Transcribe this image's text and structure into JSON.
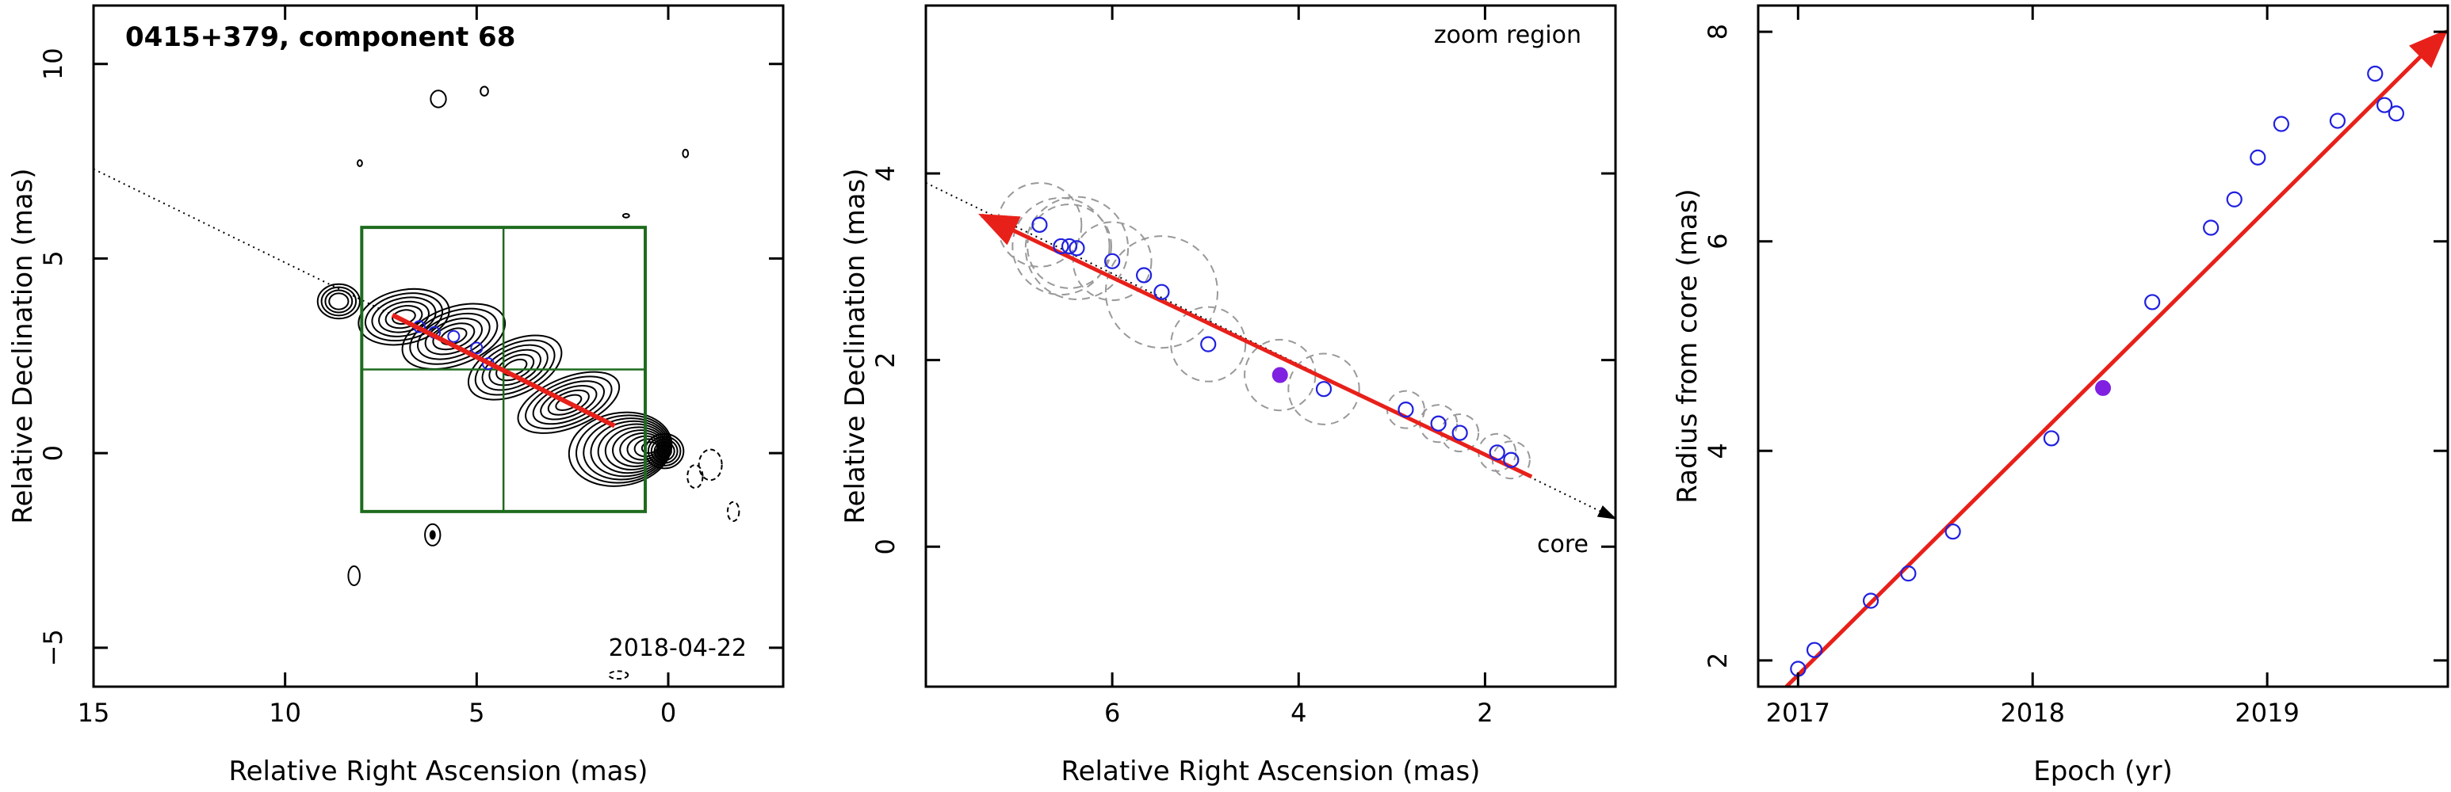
{
  "chart_data": [
    {
      "type": "contour-map",
      "title": "0415+379, component 68",
      "date_label": "2018-04-22",
      "xlabel": "Relative Right Ascension (mas)",
      "ylabel": "Relative Declination (mas)",
      "xlim": [
        15,
        -3
      ],
      "ylim": [
        -6,
        11.5
      ],
      "xticks": [
        15,
        10,
        5,
        0
      ],
      "yticks": [
        -5,
        0,
        5,
        10
      ],
      "grid": false,
      "colors": {
        "contour": "#000000",
        "zoom_box": "#1e6b1e",
        "fit_arrow": "#e8201a",
        "points": "#2020e0"
      },
      "zoom_box": {
        "ra": [
          8,
          0.6
        ],
        "dec": [
          -1.5,
          5.8
        ]
      },
      "fit_line": {
        "start": [
          7.2,
          3.55
        ],
        "end": [
          1.4,
          0.7
        ]
      },
      "component_positions": [
        {
          "x": 6.5,
          "y": 3.25
        },
        {
          "x": 6.1,
          "y": 3.1
        },
        {
          "x": 5.6,
          "y": 3.0
        },
        {
          "x": 5.0,
          "y": 2.7
        },
        {
          "x": 4.7,
          "y": 2.3
        }
      ],
      "axis_line": {
        "from": [
          15,
          7.3
        ],
        "to": [
          7.2,
          3.55
        ]
      }
    },
    {
      "type": "scatter",
      "xlabel": "Relative Right Ascension (mas)",
      "ylabel": "Relative Declination (mas)",
      "annotation_top": "zoom region",
      "annotation_core": "core",
      "xlim": [
        8,
        0.6
      ],
      "ylim": [
        -1.5,
        5.8
      ],
      "xticks": [
        6,
        4,
        2
      ],
      "yticks": [
        0,
        2,
        4
      ],
      "grid": false,
      "colors": {
        "points": "#2020e0",
        "highlight": "#8020e0",
        "circles": "#999999",
        "fit_arrow": "#e8201a"
      },
      "points": [
        {
          "x": 6.78,
          "y": 3.45
        },
        {
          "x": 6.55,
          "y": 3.22
        },
        {
          "x": 6.46,
          "y": 3.22
        },
        {
          "x": 6.38,
          "y": 3.2
        },
        {
          "x": 6.0,
          "y": 3.06
        },
        {
          "x": 5.66,
          "y": 2.91
        },
        {
          "x": 5.47,
          "y": 2.73
        },
        {
          "x": 4.97,
          "y": 2.17
        },
        {
          "x": 3.73,
          "y": 1.69
        },
        {
          "x": 2.85,
          "y": 1.47
        },
        {
          "x": 2.5,
          "y": 1.32
        },
        {
          "x": 2.27,
          "y": 1.22
        },
        {
          "x": 1.87,
          "y": 1.01
        },
        {
          "x": 1.72,
          "y": 0.93
        }
      ],
      "highlight_point": {
        "x": 4.2,
        "y": 1.84
      },
      "uncertainty_circles": [
        {
          "x": 6.78,
          "y": 3.45,
          "r": 0.45
        },
        {
          "x": 6.55,
          "y": 3.22,
          "r": 0.52
        },
        {
          "x": 6.46,
          "y": 3.22,
          "r": 0.45
        },
        {
          "x": 6.38,
          "y": 3.2,
          "r": 0.55
        },
        {
          "x": 6.0,
          "y": 3.06,
          "r": 0.42
        },
        {
          "x": 5.47,
          "y": 2.73,
          "r": 0.6
        },
        {
          "x": 4.97,
          "y": 2.17,
          "r": 0.4
        },
        {
          "x": 4.2,
          "y": 1.84,
          "r": 0.38
        },
        {
          "x": 3.73,
          "y": 1.69,
          "r": 0.38
        },
        {
          "x": 2.85,
          "y": 1.47,
          "r": 0.2
        },
        {
          "x": 2.5,
          "y": 1.32,
          "r": 0.2
        },
        {
          "x": 2.27,
          "y": 1.22,
          "r": 0.2
        },
        {
          "x": 1.87,
          "y": 1.01,
          "r": 0.2
        },
        {
          "x": 1.72,
          "y": 0.93,
          "r": 0.2
        }
      ],
      "fit_line": {
        "start": [
          1.5,
          0.75
        ],
        "end": [
          7.4,
          3.55
        ]
      },
      "axis_line": {
        "from": [
          8,
          3.9
        ],
        "to": [
          0.6,
          0.3
        ]
      }
    },
    {
      "type": "scatter",
      "xlabel": "Epoch (yr)",
      "ylabel": "Radius from core (mas)",
      "xlim": [
        2016.83,
        2019.77
      ],
      "ylim": [
        1.75,
        8.25
      ],
      "xticks": [
        2017,
        2018,
        2019
      ],
      "yticks": [
        2,
        4,
        6,
        8
      ],
      "grid": false,
      "colors": {
        "points": "#2020e0",
        "highlight": "#8020e0",
        "fit_arrow": "#e8201a"
      },
      "points": [
        {
          "x": 2017.0,
          "y": 1.92
        },
        {
          "x": 2017.07,
          "y": 2.1
        },
        {
          "x": 2017.31,
          "y": 2.57
        },
        {
          "x": 2017.47,
          "y": 2.83
        },
        {
          "x": 2017.66,
          "y": 3.23
        },
        {
          "x": 2018.08,
          "y": 4.12
        },
        {
          "x": 2018.51,
          "y": 5.42
        },
        {
          "x": 2018.76,
          "y": 6.13
        },
        {
          "x": 2018.86,
          "y": 6.4
        },
        {
          "x": 2018.96,
          "y": 6.8
        },
        {
          "x": 2019.06,
          "y": 7.12
        },
        {
          "x": 2019.3,
          "y": 7.15
        },
        {
          "x": 2019.46,
          "y": 7.6
        },
        {
          "x": 2019.5,
          "y": 7.3
        },
        {
          "x": 2019.55,
          "y": 7.22
        }
      ],
      "highlight_point": {
        "x": 2018.3,
        "y": 4.6
      },
      "fit_line": {
        "start": [
          2016.95,
          1.75
        ],
        "end": [
          2019.76,
          8.0
        ]
      }
    }
  ]
}
